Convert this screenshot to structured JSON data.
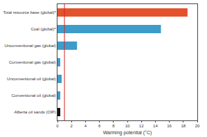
{
  "chart_data": {
    "type": "bar",
    "orientation": "horizontal",
    "categories": [
      "Total resource base (global)*",
      "Coal (global)*",
      "Unconventional gas (global)",
      "Conventional gas (global)",
      "Unconventional oil (global)",
      "Conventional oil (global)",
      "Alberta oil sands (OIP)"
    ],
    "values": [
      18.6,
      14.8,
      2.8,
      0.4,
      0.6,
      0.4,
      0.4
    ],
    "colors": [
      "#e3522b",
      "#3d9cc9",
      "#3d9cc9",
      "#3d9cc9",
      "#3d9cc9",
      "#3d9cc9",
      "#111111"
    ],
    "x_label": "Warming potential (°C)",
    "xlim": [
      0,
      20
    ],
    "xticks": [
      0,
      2,
      4,
      6,
      8,
      10,
      12,
      14,
      16,
      18,
      20
    ],
    "reference_line": {
      "value": 1,
      "color": "#d62728"
    },
    "grid": false
  }
}
